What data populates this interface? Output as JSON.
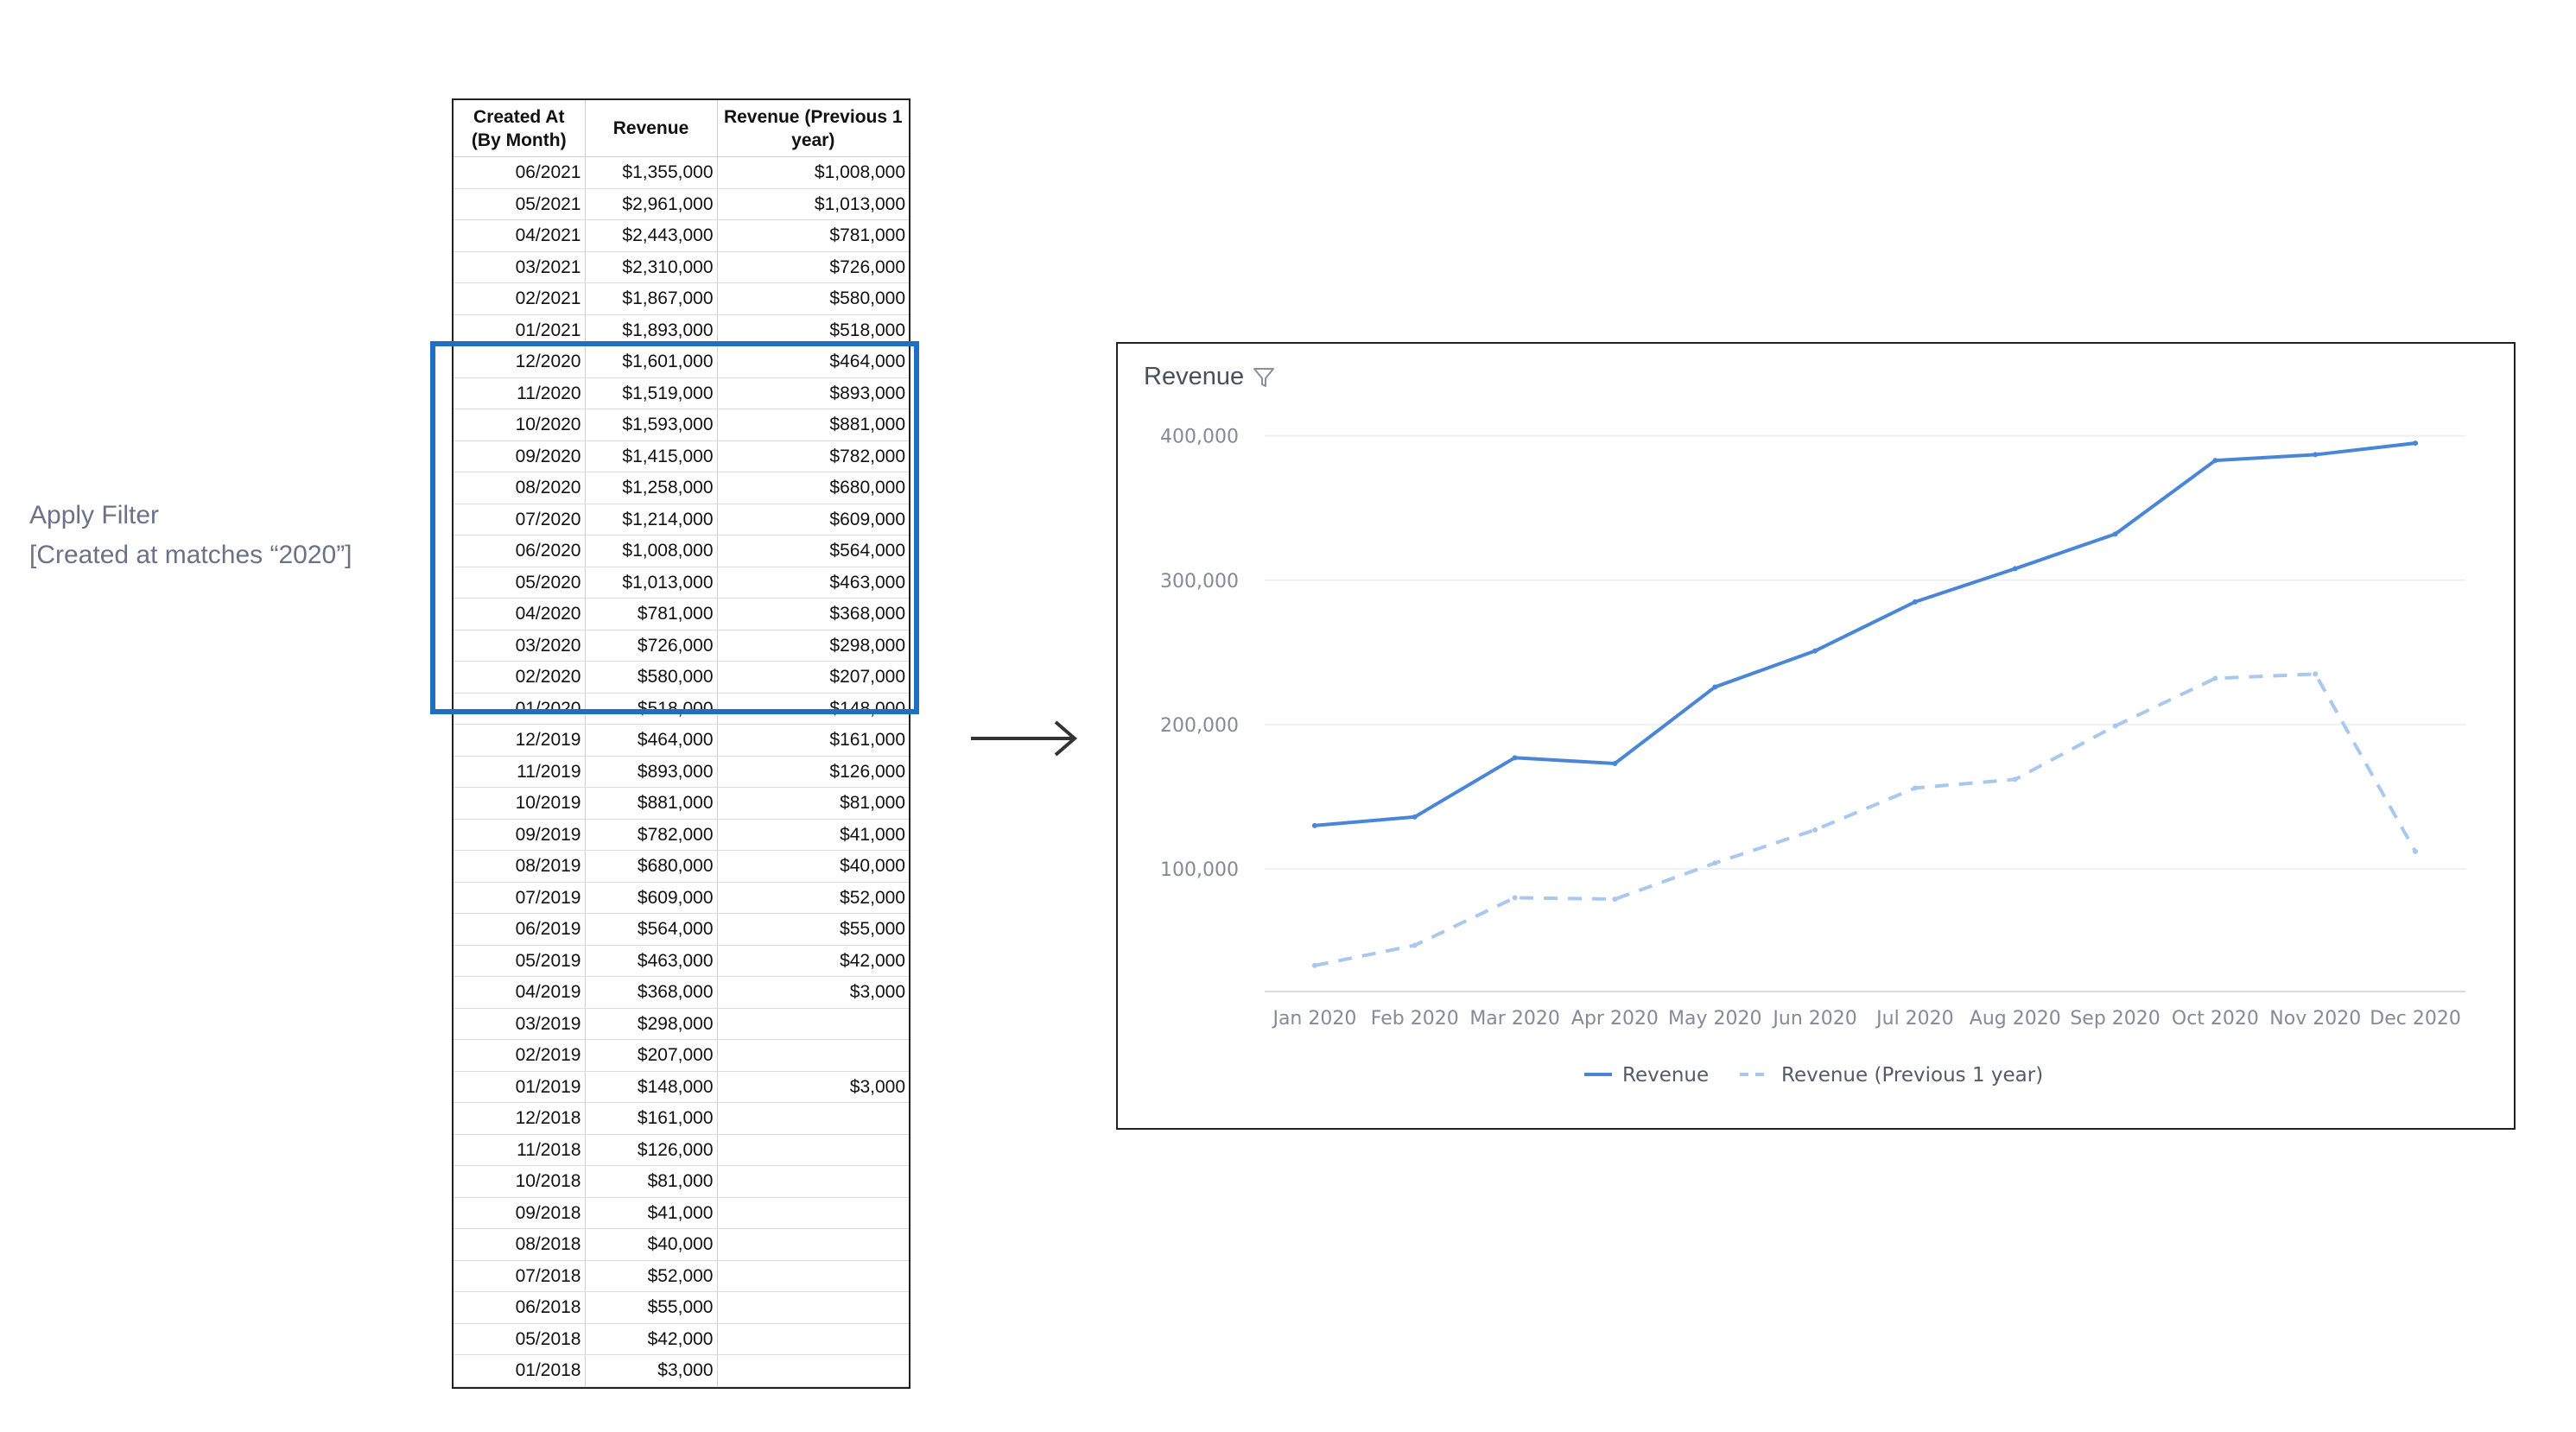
{
  "annotation": {
    "line1": "Apply Filter",
    "line2": "[Created at matches “2020”]"
  },
  "table": {
    "headers": [
      "Created At (By Month)",
      "Revenue",
      "Revenue (Previous 1 year)"
    ],
    "rows": [
      [
        "06/2021",
        "$1,355,000",
        "$1,008,000"
      ],
      [
        "05/2021",
        "$2,961,000",
        "$1,013,000"
      ],
      [
        "04/2021",
        "$2,443,000",
        "$781,000"
      ],
      [
        "03/2021",
        "$2,310,000",
        "$726,000"
      ],
      [
        "02/2021",
        "$1,867,000",
        "$580,000"
      ],
      [
        "01/2021",
        "$1,893,000",
        "$518,000"
      ],
      [
        "12/2020",
        "$1,601,000",
        "$464,000"
      ],
      [
        "11/2020",
        "$1,519,000",
        "$893,000"
      ],
      [
        "10/2020",
        "$1,593,000",
        "$881,000"
      ],
      [
        "09/2020",
        "$1,415,000",
        "$782,000"
      ],
      [
        "08/2020",
        "$1,258,000",
        "$680,000"
      ],
      [
        "07/2020",
        "$1,214,000",
        "$609,000"
      ],
      [
        "06/2020",
        "$1,008,000",
        "$564,000"
      ],
      [
        "05/2020",
        "$1,013,000",
        "$463,000"
      ],
      [
        "04/2020",
        "$781,000",
        "$368,000"
      ],
      [
        "03/2020",
        "$726,000",
        "$298,000"
      ],
      [
        "02/2020",
        "$580,000",
        "$207,000"
      ],
      [
        "01/2020",
        "$518,000",
        "$148,000"
      ],
      [
        "12/2019",
        "$464,000",
        "$161,000"
      ],
      [
        "11/2019",
        "$893,000",
        "$126,000"
      ],
      [
        "10/2019",
        "$881,000",
        "$81,000"
      ],
      [
        "09/2019",
        "$782,000",
        "$41,000"
      ],
      [
        "08/2019",
        "$680,000",
        "$40,000"
      ],
      [
        "07/2019",
        "$609,000",
        "$52,000"
      ],
      [
        "06/2019",
        "$564,000",
        "$55,000"
      ],
      [
        "05/2019",
        "$463,000",
        "$42,000"
      ],
      [
        "04/2019",
        "$368,000",
        "$3,000"
      ],
      [
        "03/2019",
        "$298,000",
        ""
      ],
      [
        "02/2019",
        "$207,000",
        ""
      ],
      [
        "01/2019",
        "$148,000",
        "$3,000"
      ],
      [
        "12/2018",
        "$161,000",
        ""
      ],
      [
        "11/2018",
        "$126,000",
        ""
      ],
      [
        "10/2018",
        "$81,000",
        ""
      ],
      [
        "09/2018",
        "$41,000",
        ""
      ],
      [
        "08/2018",
        "$40,000",
        ""
      ],
      [
        "07/2018",
        "$52,000",
        ""
      ],
      [
        "06/2018",
        "$55,000",
        ""
      ],
      [
        "05/2018",
        "$42,000",
        ""
      ],
      [
        "01/2018",
        "$3,000",
        ""
      ]
    ]
  },
  "colors": {
    "highlight": "#1f6fc1",
    "series_revenue": "#4a86d8",
    "series_previous": "#a9c8ef",
    "text_muted": "#6b7287"
  },
  "chart_panel": {
    "title": "Revenue",
    "title_icon": "filter-icon"
  },
  "chart_data": {
    "type": "line",
    "title": "Revenue",
    "x": [
      "Jan 2020",
      "Feb 2020",
      "Mar 2020",
      "Apr 2020",
      "May 2020",
      "Jun 2020",
      "Jul 2020",
      "Aug 2020",
      "Sep 2020",
      "Oct 2020",
      "Nov 2020",
      "Dec 2020"
    ],
    "series": [
      {
        "name": "Revenue",
        "style": "solid",
        "values": [
          130000,
          136000,
          177000,
          173000,
          226000,
          251000,
          285000,
          308000,
          332000,
          383000,
          387000,
          395000
        ]
      },
      {
        "name": "Revenue (Previous 1 year)",
        "style": "dashed",
        "values": [
          33000,
          47000,
          80000,
          79000,
          104000,
          127000,
          156000,
          162000,
          199000,
          232000,
          235000,
          112000
        ]
      }
    ],
    "y_ticks": [
      100000,
      200000,
      300000,
      400000
    ],
    "y_tick_labels": [
      "100,000",
      "200,000",
      "300,000",
      "400,000"
    ],
    "ylim": [
      15000,
      410000
    ],
    "grid": true,
    "legend_position": "bottom-center"
  }
}
